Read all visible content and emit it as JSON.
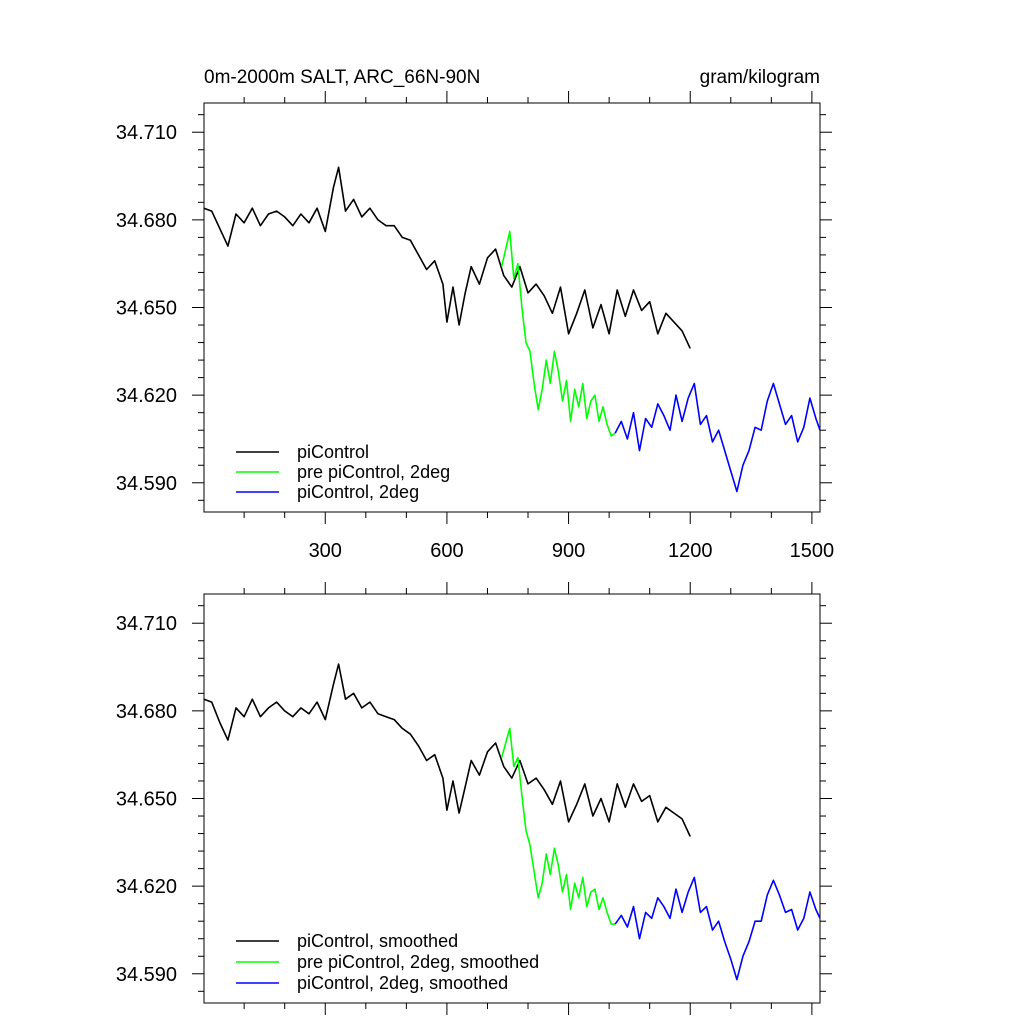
{
  "header": {
    "title": "0m-2000m SALT, ARC_66N-90N",
    "units": "gram/kilogram"
  },
  "colors": {
    "black_series": "#000000",
    "green_series": "#00ff00",
    "blue_series": "#0000ff"
  },
  "chart_data": [
    {
      "type": "line",
      "title": "0m-2000m SALT, ARC_66N-90N",
      "units": "gram/kilogram",
      "xlim": [
        1,
        1520
      ],
      "ylim": [
        34.58,
        34.72
      ],
      "x_ticks": [
        300,
        600,
        900,
        1200,
        1500
      ],
      "x_tick_labels": [
        "300",
        "600",
        "900",
        "1200",
        "1500"
      ],
      "y_ticks": [
        34.59,
        34.62,
        34.65,
        34.68,
        34.71
      ],
      "y_tick_labels": [
        "34.590",
        "34.620",
        "34.650",
        "34.680",
        "34.710"
      ],
      "legend_position": "bottom-left",
      "series": [
        {
          "name": "piControl",
          "color": "#000000",
          "x": [
            1,
            20,
            40,
            60,
            80,
            100,
            120,
            140,
            160,
            180,
            200,
            220,
            240,
            260,
            280,
            300,
            320,
            333,
            350,
            370,
            390,
            410,
            430,
            450,
            470,
            490,
            510,
            530,
            550,
            570,
            590,
            600,
            615,
            630,
            645,
            660,
            680,
            700,
            720,
            740,
            760,
            780,
            800,
            820,
            840,
            860,
            880,
            900,
            920,
            940,
            960,
            980,
            1000,
            1020,
            1040,
            1060,
            1080,
            1100,
            1120,
            1140,
            1160,
            1180,
            1200
          ],
          "y": [
            34.684,
            34.683,
            34.677,
            34.671,
            34.682,
            34.679,
            34.684,
            34.678,
            34.682,
            34.683,
            34.681,
            34.678,
            34.682,
            34.679,
            34.684,
            34.676,
            34.691,
            34.698,
            34.683,
            34.687,
            34.681,
            34.684,
            34.68,
            34.678,
            34.678,
            34.674,
            34.673,
            34.668,
            34.663,
            34.666,
            34.658,
            34.645,
            34.657,
            34.644,
            34.655,
            34.664,
            34.658,
            34.667,
            34.67,
            34.661,
            34.657,
            34.664,
            34.655,
            34.658,
            34.654,
            34.648,
            34.657,
            34.641,
            34.648,
            34.656,
            34.643,
            34.651,
            34.641,
            34.656,
            34.647,
            34.656,
            34.649,
            34.652,
            34.641,
            34.648,
            34.645,
            34.642,
            34.636
          ]
        },
        {
          "name": "pre piControl, 2deg",
          "color": "#00ff00",
          "x": [
            735,
            745,
            755,
            765,
            775,
            785,
            795,
            805,
            815,
            825,
            835,
            845,
            855,
            865,
            875,
            885,
            895,
            905,
            915,
            925,
            935,
            945,
            955,
            965,
            975,
            985,
            995,
            1005,
            1015
          ],
          "y": [
            34.664,
            34.67,
            34.676,
            34.66,
            34.665,
            34.65,
            34.638,
            34.635,
            34.624,
            34.615,
            34.622,
            34.632,
            34.624,
            34.635,
            34.628,
            34.618,
            34.625,
            34.611,
            34.622,
            34.616,
            34.624,
            34.612,
            34.618,
            34.62,
            34.611,
            34.616,
            34.61,
            34.606,
            34.607
          ]
        },
        {
          "name": "piControl, 2deg",
          "color": "#0000ff",
          "x": [
            1015,
            1030,
            1045,
            1060,
            1075,
            1090,
            1105,
            1120,
            1135,
            1150,
            1165,
            1180,
            1195,
            1210,
            1225,
            1240,
            1255,
            1270,
            1285,
            1300,
            1315,
            1330,
            1345,
            1360,
            1375,
            1390,
            1405,
            1420,
            1435,
            1450,
            1465,
            1480,
            1495,
            1510,
            1520
          ],
          "y": [
            34.607,
            34.611,
            34.605,
            34.614,
            34.601,
            34.612,
            34.609,
            34.617,
            34.613,
            34.608,
            34.62,
            34.611,
            34.619,
            34.624,
            34.61,
            34.613,
            34.604,
            34.608,
            34.601,
            34.594,
            34.587,
            34.596,
            34.601,
            34.609,
            34.608,
            34.618,
            34.624,
            34.617,
            34.61,
            34.613,
            34.604,
            34.609,
            34.619,
            34.612,
            34.608
          ]
        }
      ]
    },
    {
      "type": "line",
      "xlim": [
        1,
        1520
      ],
      "ylim": [
        34.58,
        34.72
      ],
      "x_ticks": [
        300,
        600,
        900,
        1200,
        1500
      ],
      "y_ticks": [
        34.59,
        34.62,
        34.65,
        34.68,
        34.71
      ],
      "y_tick_labels": [
        "34.590",
        "34.620",
        "34.650",
        "34.680",
        "34.710"
      ],
      "legend_position": "bottom-left",
      "series": [
        {
          "name": "piControl, smoothed",
          "color": "#000000",
          "x": [
            1,
            20,
            40,
            60,
            80,
            100,
            120,
            140,
            160,
            180,
            200,
            220,
            240,
            260,
            280,
            300,
            320,
            333,
            350,
            370,
            390,
            410,
            430,
            450,
            470,
            490,
            510,
            530,
            550,
            570,
            590,
            600,
            615,
            630,
            645,
            660,
            680,
            700,
            720,
            740,
            760,
            780,
            800,
            820,
            840,
            860,
            880,
            900,
            920,
            940,
            960,
            980,
            1000,
            1020,
            1040,
            1060,
            1080,
            1100,
            1120,
            1140,
            1160,
            1180,
            1200
          ],
          "y": [
            34.684,
            34.683,
            34.676,
            34.67,
            34.681,
            34.678,
            34.684,
            34.678,
            34.681,
            34.683,
            34.68,
            34.678,
            34.681,
            34.679,
            34.683,
            34.677,
            34.689,
            34.696,
            34.684,
            34.686,
            34.681,
            34.683,
            34.679,
            34.678,
            34.677,
            34.674,
            34.672,
            34.668,
            34.663,
            34.665,
            34.657,
            34.646,
            34.656,
            34.645,
            34.654,
            34.663,
            34.658,
            34.666,
            34.669,
            34.661,
            34.657,
            34.663,
            34.655,
            34.657,
            34.653,
            34.648,
            34.656,
            34.642,
            34.648,
            34.655,
            34.644,
            34.65,
            34.642,
            34.655,
            34.647,
            34.655,
            34.649,
            34.651,
            34.642,
            34.647,
            34.645,
            34.643,
            34.637
          ]
        },
        {
          "name": "pre piControl, 2deg, smoothed",
          "color": "#00ff00",
          "x": [
            735,
            745,
            755,
            765,
            775,
            785,
            795,
            805,
            815,
            825,
            835,
            845,
            855,
            865,
            875,
            885,
            895,
            905,
            915,
            925,
            935,
            945,
            955,
            965,
            975,
            985,
            995,
            1005,
            1015
          ],
          "y": [
            34.664,
            34.669,
            34.674,
            34.661,
            34.664,
            34.651,
            34.639,
            34.634,
            34.625,
            34.616,
            34.621,
            34.631,
            34.624,
            34.633,
            34.627,
            34.618,
            34.624,
            34.612,
            34.621,
            34.616,
            34.623,
            34.613,
            34.618,
            34.619,
            34.612,
            34.616,
            34.611,
            34.607,
            34.607
          ]
        },
        {
          "name": "piControl, 2deg, smoothed",
          "color": "#0000ff",
          "x": [
            1015,
            1030,
            1045,
            1060,
            1075,
            1090,
            1105,
            1120,
            1135,
            1150,
            1165,
            1180,
            1195,
            1210,
            1225,
            1240,
            1255,
            1270,
            1285,
            1300,
            1315,
            1330,
            1345,
            1360,
            1375,
            1390,
            1405,
            1420,
            1435,
            1450,
            1465,
            1480,
            1495,
            1510,
            1520
          ],
          "y": [
            34.607,
            34.61,
            34.606,
            34.613,
            34.602,
            34.611,
            34.609,
            34.616,
            34.613,
            34.609,
            34.619,
            34.611,
            34.618,
            34.623,
            34.611,
            34.613,
            34.605,
            34.608,
            34.601,
            34.595,
            34.588,
            34.596,
            34.601,
            34.608,
            34.608,
            34.617,
            34.622,
            34.617,
            34.611,
            34.612,
            34.605,
            34.609,
            34.618,
            34.612,
            34.609
          ]
        }
      ]
    }
  ]
}
